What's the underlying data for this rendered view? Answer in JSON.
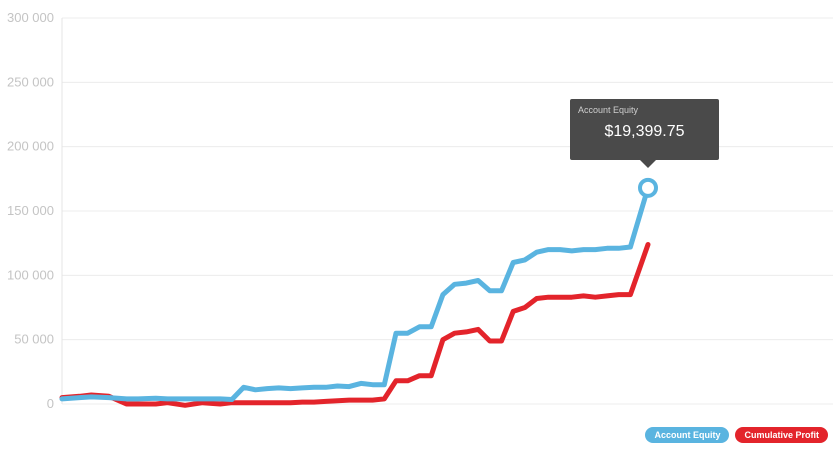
{
  "chart_data": {
    "type": "line",
    "title": "",
    "xlabel": "",
    "ylabel": "",
    "ylim": [
      0,
      300000
    ],
    "yticks": [
      {
        "value": 0,
        "label": "0"
      },
      {
        "value": 50000,
        "label": "50 000"
      },
      {
        "value": 100000,
        "label": "100 000"
      },
      {
        "value": 150000,
        "label": "150 000"
      },
      {
        "value": 200000,
        "label": "200 000"
      },
      {
        "value": 250000,
        "label": "250 000"
      },
      {
        "value": 300000,
        "label": "300 000"
      }
    ],
    "x": [
      0,
      3,
      5,
      8,
      11,
      13,
      16,
      18,
      21,
      24,
      27,
      29,
      31,
      33,
      35,
      37,
      39,
      41,
      43,
      45,
      47,
      49,
      51,
      53,
      55,
      57,
      59,
      61,
      63,
      65,
      67,
      69,
      71,
      73,
      75,
      77,
      79,
      81,
      83,
      85,
      87,
      89,
      91,
      93,
      95,
      97,
      100
    ],
    "series": [
      {
        "name": "Account Equity",
        "color": "#5ab4e0",
        "values": [
          4000,
          5000,
          5500,
          5000,
          4000,
          4000,
          4500,
          4000,
          4000,
          4000,
          4000,
          3500,
          13000,
          11000,
          12000,
          12500,
          12000,
          12500,
          13000,
          13000,
          14000,
          13500,
          16000,
          15000,
          15000,
          55000,
          55000,
          60000,
          60000,
          85000,
          93000,
          94000,
          96000,
          88000,
          88000,
          110000,
          112000,
          118000,
          120000,
          120000,
          119000,
          120000,
          120000,
          121000,
          121000,
          122000,
          168000
        ]
      },
      {
        "name": "Cumulative Profit",
        "color": "#e3242b",
        "values": [
          5000,
          6000,
          7000,
          6000,
          0,
          0,
          0,
          1000,
          -1000,
          1000,
          0,
          1000,
          1000,
          1000,
          1000,
          1000,
          1000,
          1500,
          1500,
          2000,
          2500,
          3000,
          3000,
          3000,
          4000,
          18000,
          18000,
          22000,
          22000,
          50000,
          55000,
          56000,
          58000,
          49000,
          49000,
          72000,
          75000,
          82000,
          83000,
          83000,
          83000,
          84000,
          83000,
          84000,
          85000,
          85000,
          124000
        ]
      }
    ],
    "legend_position": "bottom-right",
    "grid": true
  },
  "tooltip": {
    "label": "Account Equity",
    "value": "$19,399.75"
  },
  "legend": [
    {
      "label": "Account Equity",
      "color": "#5ab4e0"
    },
    {
      "label": "Cumulative Profit",
      "color": "#e3242b"
    }
  ]
}
